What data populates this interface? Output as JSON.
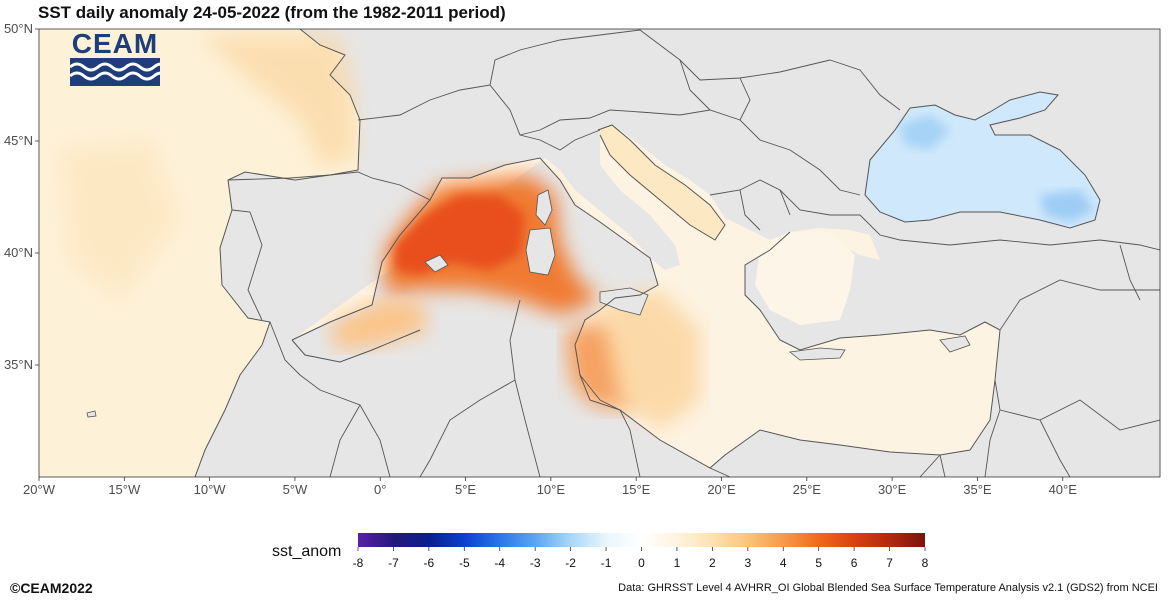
{
  "title": "SST daily anomaly 24-05-2022 (from the 1982-2011 period)",
  "logo": {
    "text": "CEAM",
    "icon": "ceam-waves-logo"
  },
  "axes": {
    "lon_ticks": [
      "20°W",
      "15°W",
      "10°W",
      "5°W",
      "0°",
      "5°E",
      "10°E",
      "15°E",
      "20°E",
      "25°E",
      "30°E",
      "35°E",
      "40°E"
    ],
    "lat_ticks": [
      "50°N",
      "45°N",
      "40°N",
      "35°N"
    ]
  },
  "legend": {
    "title": "sst_anom",
    "ticks": [
      "-8",
      "-7",
      "-6",
      "-5",
      "-4",
      "-3",
      "-2",
      "-1",
      "0",
      "1",
      "2",
      "3",
      "4",
      "5",
      "6",
      "7",
      "8"
    ],
    "colors": [
      "#5b1fa8",
      "#241a7a",
      "#0b1f8c",
      "#0d3fd0",
      "#2a76e8",
      "#5aa6f2",
      "#a9d6f9",
      "#eaf5fc",
      "#ffffff",
      "#fdf3df",
      "#fde2b0",
      "#fbc47a",
      "#f59a4a",
      "#f06a1c",
      "#d94212",
      "#b3280e",
      "#7a140a"
    ]
  },
  "footer": {
    "copyright": "©CEAM2022",
    "source": "Data: GHRSST Level 4 AVHRR_OI Global Blended Sea Surface Temperature Analysis v2.1 (GDS2) from NCEI"
  },
  "colors": {
    "land": "#e6e6e6",
    "border": "#555555",
    "warm_max": "#ea4a16",
    "cool": "#9fd0f4"
  }
}
